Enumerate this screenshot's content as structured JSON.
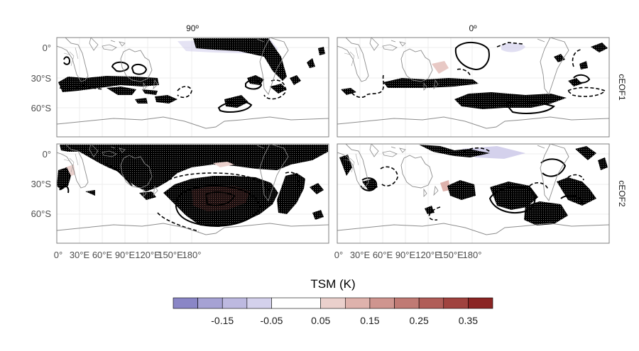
{
  "chart_data": {
    "type": "heatmap",
    "legend_title": "TSM (K)",
    "legend_position": "bottom",
    "columns": [
      "90º",
      "0º"
    ],
    "rows": [
      "cEOF1",
      "cEOF2"
    ],
    "y_ticks": [
      "0°",
      "30°S",
      "60°S"
    ],
    "x_ticks": [
      "0°",
      "30°E",
      "60°E",
      "90°E",
      "120°E",
      "150°E",
      "180°"
    ],
    "y_range_deg": [
      -90,
      10
    ],
    "x_range_deg": [
      0,
      360
    ],
    "grid": true,
    "colorbar": {
      "breaks": [
        -0.25,
        -0.2,
        -0.15,
        -0.1,
        -0.05,
        0.05,
        0.1,
        0.15,
        0.2,
        0.25,
        0.3,
        0.35,
        0.4
      ],
      "labels": [
        "-0.15",
        "-0.05",
        "0.05",
        "0.15",
        "0.25",
        "0.35"
      ],
      "label_values": [
        -0.15,
        -0.05,
        0.05,
        0.15,
        0.25,
        0.35
      ],
      "colors": [
        "#8a86c6",
        "#a6a2d4",
        "#bdb9e0",
        "#d4d1ec",
        "#ffffff",
        "#ead0cc",
        "#deb2ac",
        "#cf958f",
        "#c07a74",
        "#b05d58",
        "#a0433f",
        "#8b2524"
      ]
    },
    "colors": {
      "land_outline": "#8c8c8c",
      "significance": "#000000",
      "grid": "#e6e6e6",
      "panel_border": "#7f7f7f"
    }
  }
}
